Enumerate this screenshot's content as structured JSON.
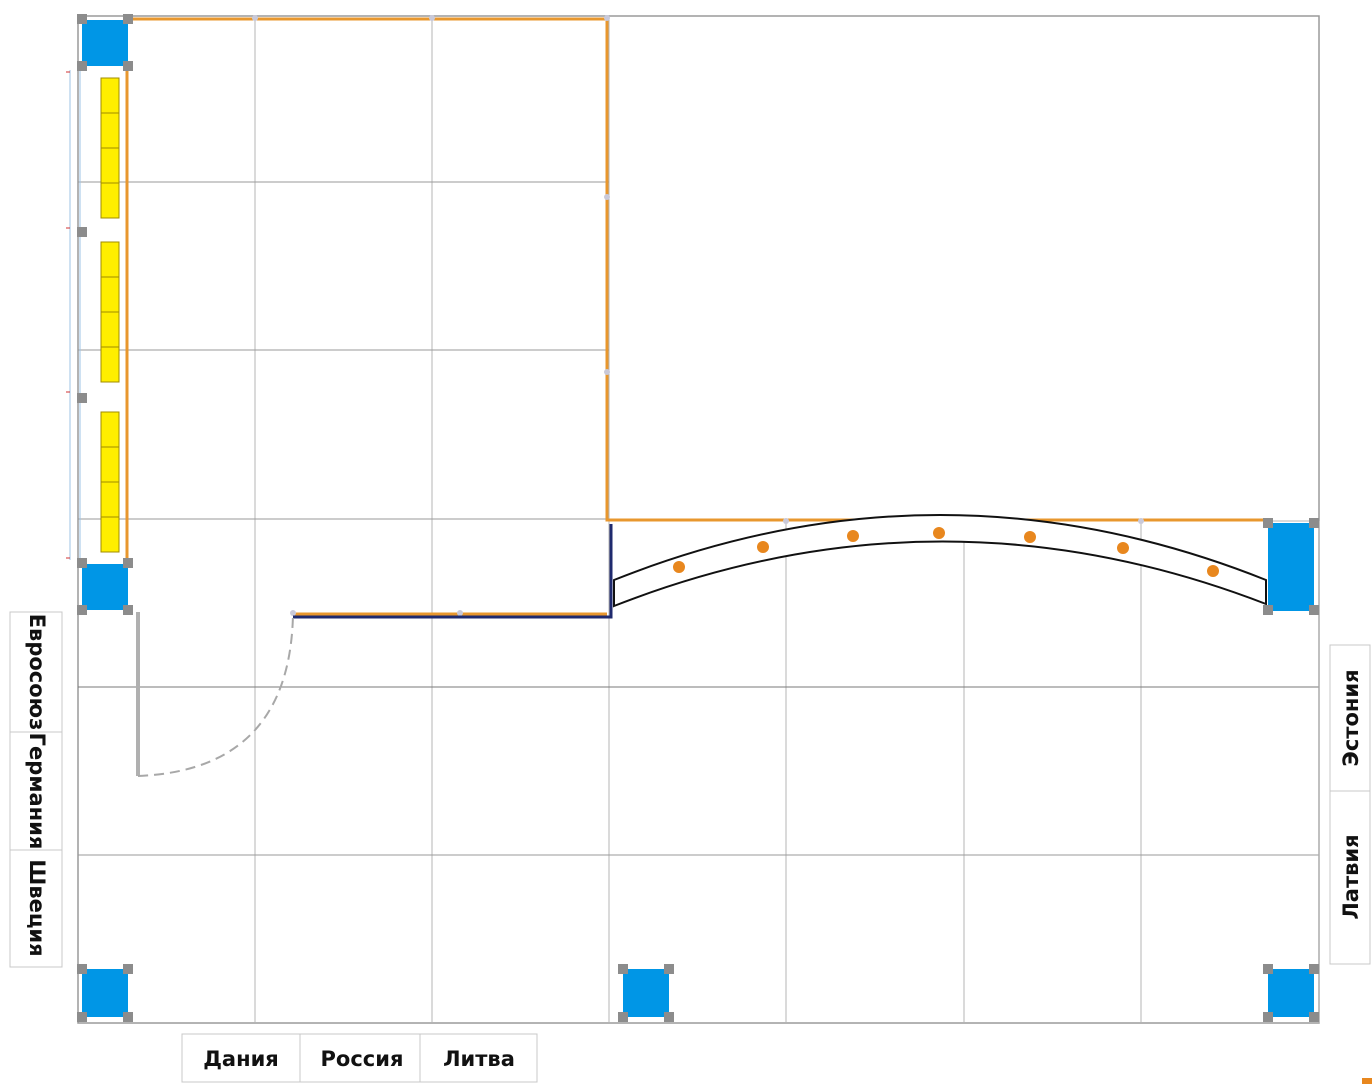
{
  "labels": {
    "left": [
      "Евросоюз",
      "Германия",
      "Швеция"
    ],
    "bottom": [
      "Дания",
      "Россия",
      "Литва"
    ],
    "right": [
      "Эстония",
      "Латвия"
    ]
  },
  "colors": {
    "grid": "#b4b4b4",
    "grid_dark": "#7a7a7a",
    "column_fill": "#0096e6",
    "column_corner": "#8c8c8c",
    "wall_orange": "#e8972e",
    "wall_navy": "#1f2a6e",
    "panel_yellow": "#ffee00",
    "light_orange": "#e8871e",
    "door_gray": "#b0b0b0"
  },
  "icons": {
    "column": "square-column-icon",
    "light": "round-spotlight-icon"
  }
}
